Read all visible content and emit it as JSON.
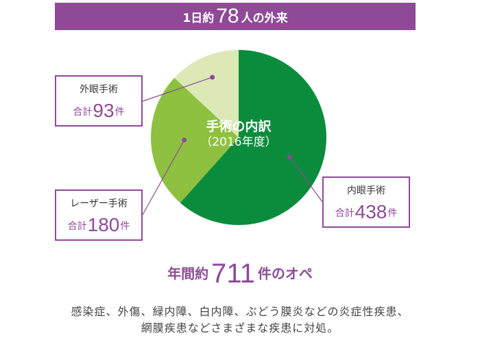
{
  "header": {
    "prefix": "1日約",
    "number": "78",
    "suffix": "人の外来"
  },
  "chart_data": {
    "type": "pie",
    "title": "手術の内訳",
    "subtitle": "（2016年度）",
    "slices": [
      {
        "name": "内眼手術",
        "value": 438,
        "color": "#0b8c3c"
      },
      {
        "name": "レーザー手術",
        "value": 180,
        "color": "#8dc13f"
      },
      {
        "name": "外眼手術",
        "value": 93,
        "color": "#dce9b6"
      }
    ]
  },
  "labels": {
    "outer": {
      "name": "外眼手術",
      "prefix": "合計",
      "value": "93",
      "suffix": "件"
    },
    "laser": {
      "name": "レーザー手術",
      "prefix": "合計",
      "value": "180",
      "suffix": "件"
    },
    "inner": {
      "name": "内眼手術",
      "prefix": "合計",
      "value": "438",
      "suffix": "件"
    }
  },
  "summary": {
    "prefix": "年間約",
    "number": "711",
    "suffix": "件のオペ"
  },
  "description": {
    "line1": "感染症、外傷、緑内障、白内障、ぶどう膜炎などの炎症性疾患、",
    "line2": "網膜疾患などさまざまな疾患に対処。"
  },
  "colors": {
    "accent": "#8e4a97"
  }
}
